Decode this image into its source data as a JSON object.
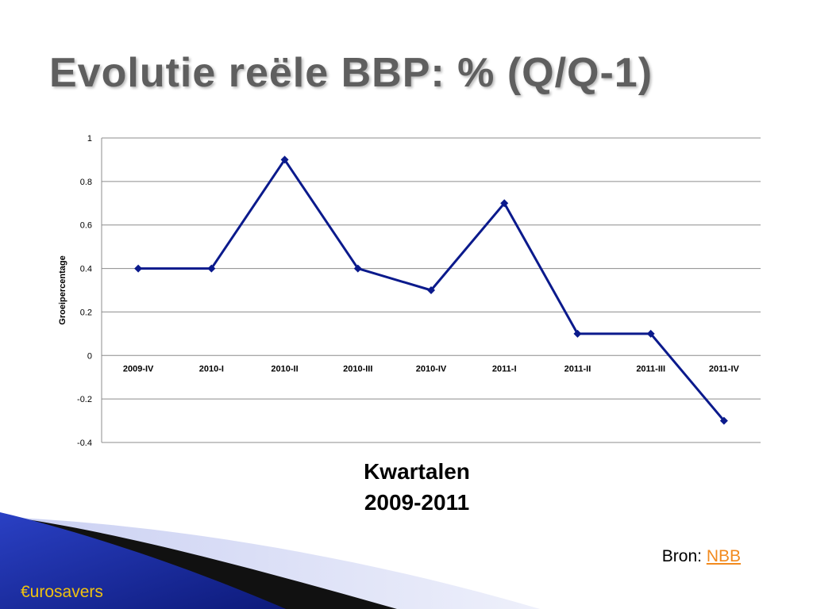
{
  "slide": {
    "title": "Evolutie reële BBP: % (Q/Q-1)",
    "x_title_line1": "Kwartalen",
    "x_title_line2": "2009-2011",
    "source_label": "Bron:",
    "source_link": "NBB",
    "brand": "€urosavers"
  },
  "colors": {
    "series": "#0b1a8c",
    "title": "#5f5f5f",
    "link": "#f28a1e",
    "brand": "#f0c20f",
    "decor_blue": "#1c2fa8"
  },
  "chart_data": {
    "type": "line",
    "categories": [
      "2009-IV",
      "2010-I",
      "2010-II",
      "2010-III",
      "2010-IV",
      "2011-I",
      "2011-II",
      "2011-III",
      "2011-IV"
    ],
    "series": [
      {
        "values": [
          0.4,
          0.4,
          0.9,
          0.4,
          0.3,
          0.7,
          0.1,
          0.1,
          -0.3
        ]
      }
    ],
    "ylabel": "Groeipercentage",
    "ylim": [
      -0.4,
      1
    ],
    "yticks": [
      "1",
      "0.8",
      "0.6",
      "0.4",
      "0.2",
      "0",
      "-0.2",
      "-0.4"
    ],
    "grid": true,
    "marker": "diamond"
  }
}
